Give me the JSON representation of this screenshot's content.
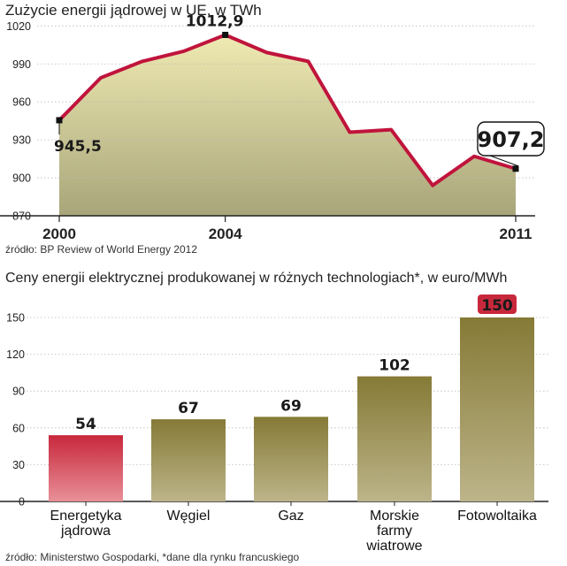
{
  "chart1": {
    "title": "Zużycie energii jądrowej w UE, w TWh",
    "source": "źródło: BP Review of World Energy 2012",
    "colors": {
      "line": "#c0143c",
      "area_top": "#efeab2",
      "area_bottom": "#a8a57a"
    },
    "chart_data": {
      "type": "area",
      "x": [
        2000,
        2001,
        2002,
        2003,
        2004,
        2005,
        2006,
        2007,
        2008,
        2009,
        2010,
        2011
      ],
      "values": [
        945.5,
        979,
        992,
        1000,
        1012.9,
        999,
        992,
        936,
        938,
        894,
        917,
        907.2
      ],
      "xticks": [
        "2000",
        "2004",
        "2011"
      ],
      "xtick_values": [
        2000,
        2004,
        2011
      ],
      "yticks": [
        "870",
        "900",
        "930",
        "960",
        "990",
        "1020"
      ],
      "ytick_values": [
        870,
        900,
        930,
        960,
        990,
        1020
      ],
      "ylim": [
        870,
        1030
      ],
      "grid": true,
      "annotations": [
        {
          "x": 2000,
          "y": 945.5,
          "label": "945,5"
        },
        {
          "x": 2004,
          "y": 1012.9,
          "label": "1012,9"
        },
        {
          "x": 2011,
          "y": 907.2,
          "label": "907,2",
          "boxed": true
        }
      ]
    }
  },
  "chart2": {
    "title": "Ceny energii elektrycznej produkowanej w różnych technologiach*, w euro/MWh",
    "source": "źródło: Ministerstwo Gospodarki, *dane dla rynku francuskiego",
    "colors": {
      "highlight": "#c8283c",
      "bar_top": "#857a36",
      "bar_bottom": "#bdb48a"
    },
    "chart_data": {
      "type": "bar",
      "categories": [
        [
          "Energetyka",
          "jądrowa"
        ],
        [
          "Węgiel"
        ],
        [
          "Gaz"
        ],
        [
          "Morskie",
          "farmy",
          "wiatrowe"
        ],
        [
          "Fotowoltaika"
        ]
      ],
      "values": [
        54,
        67,
        69,
        102,
        150
      ],
      "value_labels": [
        "54",
        "67",
        "69",
        "102",
        "150"
      ],
      "highlight_bar": 0,
      "boxed_label": 4,
      "yticks": [
        "0",
        "30",
        "60",
        "90",
        "120",
        "150"
      ],
      "ytick_values": [
        0,
        30,
        60,
        90,
        120,
        150
      ],
      "ylim": [
        0,
        160
      ],
      "grid": true
    }
  }
}
